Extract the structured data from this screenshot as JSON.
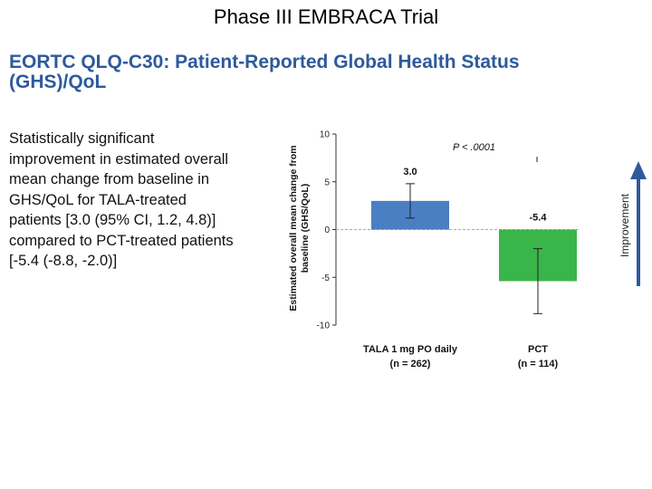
{
  "slide_title": "Phase III EMBRACA Trial",
  "heading_lines": [
    "EORTC QLQ-C30: Patient-Reported Global Health Status",
    "(GHS)/QoL"
  ],
  "summary_lines": [
    "Statistically significant",
    "improvement in estimated overall",
    "mean change from baseline in",
    "GHS/QoL for TALA-treated",
    "patients [3.0 (95% CI, 1.2, 4.8)]",
    "compared to PCT-treated patients",
    "[-5.4 (-8.8, -2.0)]"
  ],
  "colors": {
    "heading": "#2e5a9c",
    "tala_bar": "#4a7fc4",
    "pct_bar": "#3ab54a",
    "arrow": "#2e5a9c"
  },
  "chart_data": {
    "type": "bar",
    "title": "",
    "ylabel_lines": [
      "Estimated overall mean change from",
      "baseline (GHS/QoL)"
    ],
    "ylim": [
      -10,
      10
    ],
    "yticks": [
      10,
      5,
      0,
      -5,
      -10
    ],
    "ytick_labels": [
      "10",
      "5",
      "0",
      "-5",
      "-10"
    ],
    "reference_line": 0,
    "categories": [
      {
        "name": "TALA 1 mg PO daily",
        "n_label": "(n = 262)"
      },
      {
        "name": "PCT",
        "n_label": "(n = 114)"
      }
    ],
    "values": [
      3.0,
      -5.4
    ],
    "value_labels": [
      "3.0",
      "-5.4"
    ],
    "ci": [
      [
        1.2,
        4.8
      ],
      [
        -8.8,
        -2.0
      ]
    ],
    "p_value_label": "P < .0001",
    "annotation": "Improvement"
  }
}
